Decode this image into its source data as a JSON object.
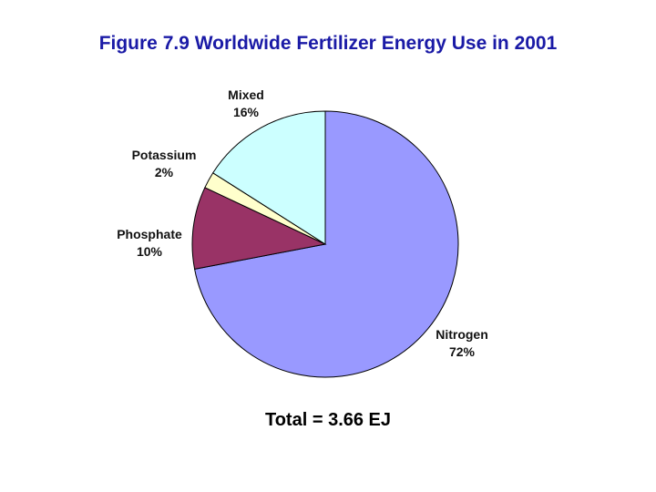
{
  "chart_data": {
    "type": "pie",
    "title": "Figure 7.9 Worldwide Fertilizer Energy Use in 2001",
    "slices": [
      {
        "name": "Nitrogen",
        "value": 72,
        "label": "72%",
        "color": "#9999ff"
      },
      {
        "name": "Phosphate",
        "value": 10,
        "label": "10%",
        "color": "#993366"
      },
      {
        "name": "Potassium",
        "value": 2,
        "label": "2%",
        "color": "#ffffcc"
      },
      {
        "name": "Mixed",
        "value": 16,
        "label": "16%",
        "color": "#ccffff"
      }
    ],
    "note": "Total = 3.66 EJ"
  }
}
